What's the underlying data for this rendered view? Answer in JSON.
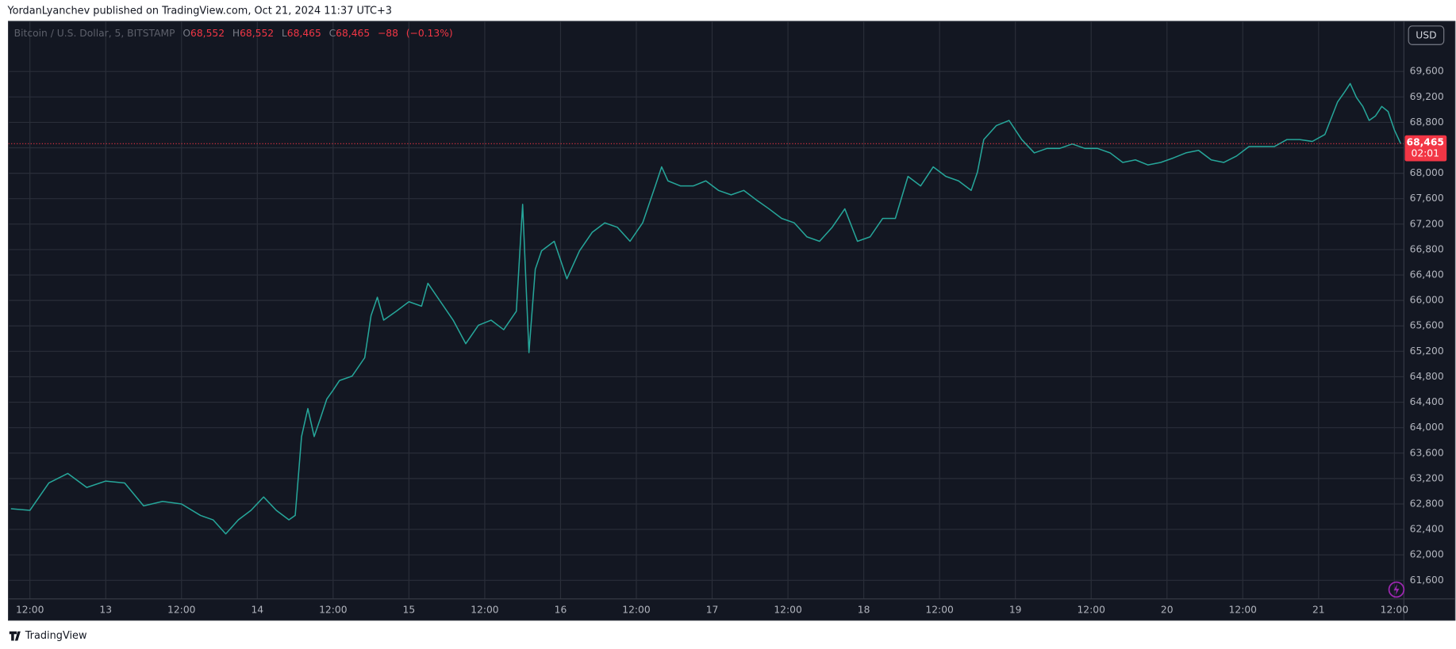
{
  "header": {
    "byline": "YordanLyanchev published on TradingView.com, Oct 21, 2024 11:37 UTC+3"
  },
  "footer": {
    "brand": "TradingView"
  },
  "chart_data": {
    "type": "line",
    "title": "Bitcoin / U.S. Dollar, 5, BITSTAMP",
    "ohlc_legend": {
      "o_label": "O",
      "o": "68,552",
      "h_label": "H",
      "h": "68,552",
      "l_label": "L",
      "l": "68,465",
      "c_label": "C",
      "c": "68,465",
      "change": "−88",
      "change_pct": "(−0.13%)"
    },
    "currency": "USD",
    "last_price": {
      "value": 68465,
      "label": "68,465"
    },
    "countdown": "02:01",
    "color": "#26a69a",
    "grid": true,
    "x": [
      9,
      12,
      15,
      18,
      21,
      24,
      27,
      30,
      33,
      36,
      39,
      41,
      43,
      45,
      47,
      49,
      51,
      53,
      54,
      55,
      56,
      57,
      58,
      59,
      60,
      61,
      63,
      65,
      66,
      67,
      68,
      70,
      72,
      74,
      75,
      77,
      79,
      81,
      83,
      85,
      87,
      89,
      90,
      91,
      92,
      93,
      95,
      97,
      99,
      101,
      103,
      105,
      107,
      109,
      111,
      112,
      113,
      115,
      117,
      119,
      121,
      123,
      125,
      127,
      129,
      131,
      133,
      135,
      137,
      139,
      141,
      143,
      145,
      147,
      149,
      151,
      153,
      155,
      157,
      159,
      161,
      162,
      163,
      165,
      167,
      169,
      171,
      173,
      175,
      177,
      179,
      181,
      183,
      185,
      187,
      189,
      191,
      193,
      195,
      197,
      199,
      201,
      203,
      205,
      207,
      209,
      211,
      213,
      215,
      217,
      219,
      220,
      221,
      222,
      223,
      224,
      225,
      226,
      227,
      228,
      229
    ],
    "series": [
      {
        "name": "Bitcoin / U.S. Dollar",
        "color": "#26a69a",
        "values": [
          62725,
          62700,
          63130,
          63280,
          63060,
          63160,
          63130,
          62770,
          62840,
          62800,
          62620,
          62550,
          62330,
          62550,
          62700,
          62910,
          62700,
          62550,
          62620,
          63860,
          64300,
          63860,
          64150,
          64450,
          64590,
          64740,
          64810,
          65100,
          65760,
          66050,
          65690,
          65830,
          65980,
          65910,
          66270,
          65980,
          65690,
          65320,
          65610,
          65690,
          65540,
          65830,
          67510,
          65180,
          66490,
          66780,
          66930,
          66340,
          66780,
          67070,
          67220,
          67150,
          66930,
          67220,
          67800,
          68100,
          67880,
          67800,
          67800,
          67880,
          67730,
          67660,
          67730,
          67580,
          67440,
          67290,
          67220,
          67000,
          66930,
          67150,
          67440,
          66930,
          67000,
          67290,
          67290,
          67950,
          67800,
          68100,
          67950,
          67880,
          67730,
          68020,
          68530,
          68750,
          68830,
          68530,
          68320,
          68390,
          68390,
          68460,
          68390,
          68390,
          68320,
          68170,
          68210,
          68130,
          68170,
          68240,
          68320,
          68360,
          68210,
          68170,
          68270,
          68420,
          68420,
          68420,
          68530,
          68530,
          68500,
          68610,
          69120,
          69260,
          69410,
          69190,
          69050,
          68830,
          68900,
          69050,
          68970,
          68680,
          68465
        ]
      }
    ],
    "xlim": [
      8.6,
      229.5
    ],
    "xticks": [
      {
        "value": 12,
        "label": "12:00"
      },
      {
        "value": 24,
        "label": "13"
      },
      {
        "value": 36,
        "label": "12:00"
      },
      {
        "value": 48,
        "label": "14"
      },
      {
        "value": 60,
        "label": "12:00"
      },
      {
        "value": 72,
        "label": "15"
      },
      {
        "value": 84,
        "label": "12:00"
      },
      {
        "value": 96,
        "label": "16"
      },
      {
        "value": 108,
        "label": "12:00"
      },
      {
        "value": 120,
        "label": "17"
      },
      {
        "value": 132,
        "label": "12:00"
      },
      {
        "value": 144,
        "label": "18"
      },
      {
        "value": 156,
        "label": "12:00"
      },
      {
        "value": 168,
        "label": "19"
      },
      {
        "value": 180,
        "label": "12:00"
      },
      {
        "value": 192,
        "label": "20"
      },
      {
        "value": 204,
        "label": "12:00"
      },
      {
        "value": 216,
        "label": "21"
      },
      {
        "value": 228,
        "label": "12:00"
      }
    ],
    "ylim": [
      61308,
      70388
    ],
    "yticks": [
      {
        "value": 61600,
        "label": "61,600"
      },
      {
        "value": 62000,
        "label": "62,000"
      },
      {
        "value": 62400,
        "label": "62,400"
      },
      {
        "value": 62800,
        "label": "62,800"
      },
      {
        "value": 63200,
        "label": "63,200"
      },
      {
        "value": 63600,
        "label": "63,600"
      },
      {
        "value": 64000,
        "label": "64,000"
      },
      {
        "value": 64400,
        "label": "64,400"
      },
      {
        "value": 64800,
        "label": "64,800"
      },
      {
        "value": 65200,
        "label": "65,200"
      },
      {
        "value": 65600,
        "label": "65,600"
      },
      {
        "value": 66000,
        "label": "66,000"
      },
      {
        "value": 66400,
        "label": "66,400"
      },
      {
        "value": 66800,
        "label": "66,800"
      },
      {
        "value": 67200,
        "label": "67,200"
      },
      {
        "value": 67600,
        "label": "67,600"
      },
      {
        "value": 68000,
        "label": "68,000"
      },
      {
        "value": 68400,
        "label": "68,400"
      },
      {
        "value": 68800,
        "label": "68,800"
      },
      {
        "value": 69200,
        "label": "69,200"
      },
      {
        "value": 69600,
        "label": "69,600"
      }
    ]
  }
}
